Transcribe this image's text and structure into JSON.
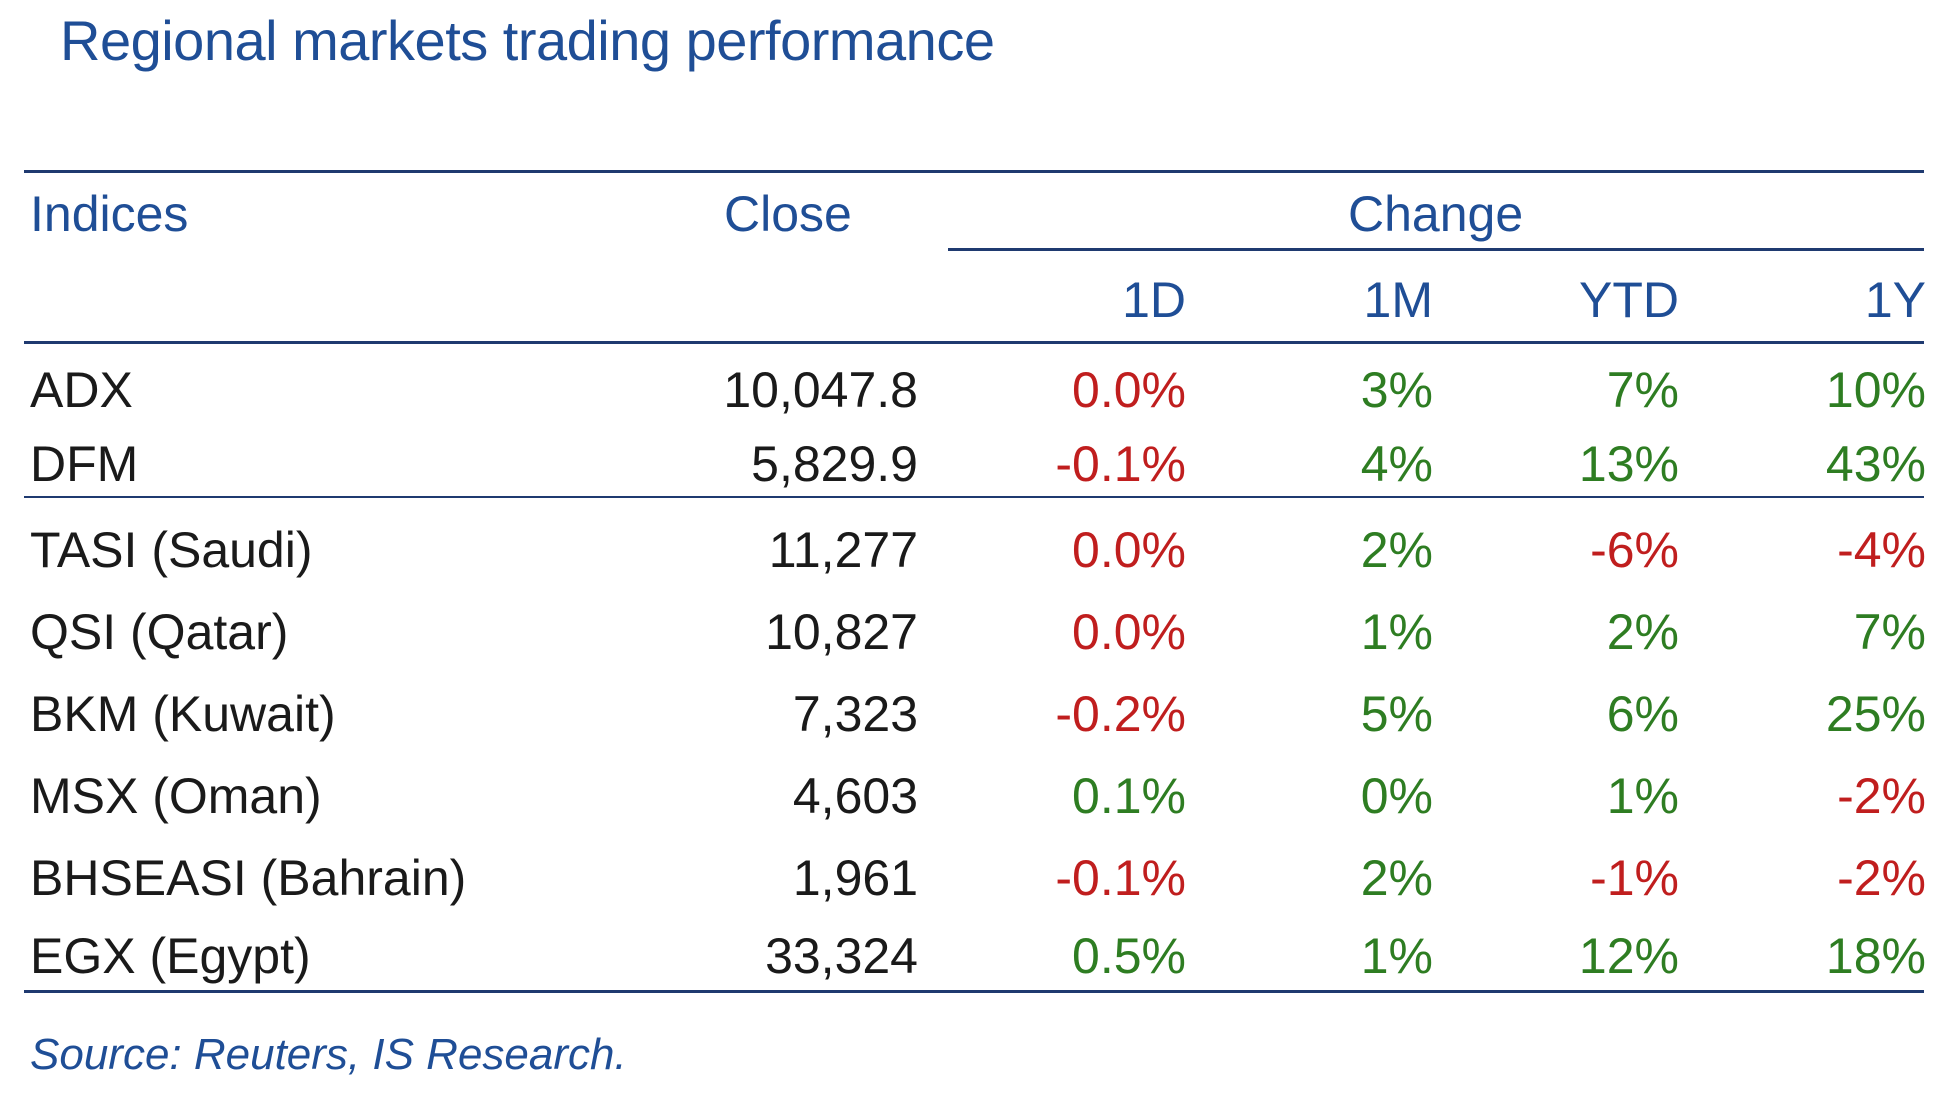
{
  "title": "Regional markets trading performance",
  "headers": {
    "indices": "Indices",
    "close": "Close",
    "change": "Change",
    "d1": "1D",
    "m1": "1M",
    "ytd": "YTD",
    "y1": "1Y"
  },
  "rows": [
    {
      "index": "ADX",
      "close": "10,047.8",
      "d1": "0.0%",
      "m1": "3%",
      "ytd": "7%",
      "y1": "10%"
    },
    {
      "index": "DFM",
      "close": "5,829.9",
      "d1": "-0.1%",
      "m1": "4%",
      "ytd": "13%",
      "y1": "43%"
    },
    {
      "index": "TASI (Saudi)",
      "close": "11,277",
      "d1": "0.0%",
      "m1": "2%",
      "ytd": "-6%",
      "y1": "-4%"
    },
    {
      "index": "QSI (Qatar)",
      "close": "10,827",
      "d1": "0.0%",
      "m1": "1%",
      "ytd": "2%",
      "y1": "7%"
    },
    {
      "index": "BKM (Kuwait)",
      "close": "7,323",
      "d1": "-0.2%",
      "m1": "5%",
      "ytd": "6%",
      "y1": "25%"
    },
    {
      "index": "MSX (Oman)",
      "close": "4,603",
      "d1": "0.1%",
      "m1": "0%",
      "ytd": "1%",
      "y1": "-2%"
    },
    {
      "index": "BHSEASI (Bahrain)",
      "close": "1,961",
      "d1": "-0.1%",
      "m1": "2%",
      "ytd": "-1%",
      "y1": "-2%"
    },
    {
      "index": "EGX (Egypt)",
      "close": "33,324",
      "d1": "0.5%",
      "m1": "1%",
      "ytd": "12%",
      "y1": "18%"
    }
  ],
  "source": "Source: Reuters, IS Research.",
  "colors": {
    "header_blue": "#1F4E96",
    "rule": "#1F3A70",
    "positive": "#2E7D22",
    "negative": "#C01E1E"
  }
}
